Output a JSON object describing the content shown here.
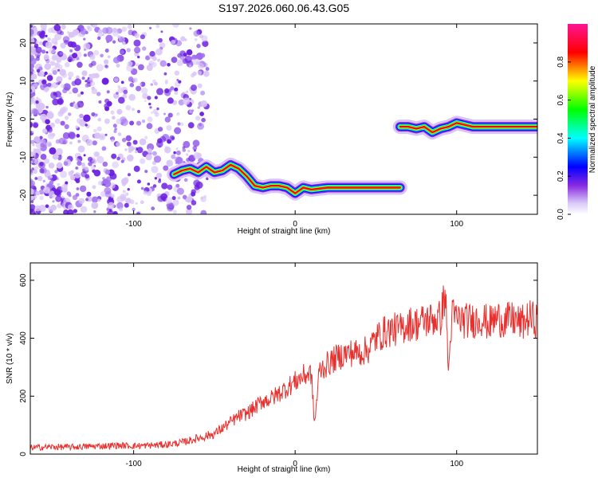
{
  "title": "S197.2026.060.06.43.G05",
  "chart_data": [
    {
      "type": "heatmap",
      "name": "spectrogram",
      "xlabel": "Height of straight line (km)",
      "ylabel": "Frequency (Hz)",
      "xlim": [
        -164,
        150
      ],
      "ylim": [
        -25,
        25
      ],
      "xticks": [
        -100,
        0,
        100
      ],
      "xtick_labels": [
        "-100",
        "0",
        "100"
      ],
      "yticks": [
        -20,
        -10,
        0,
        10,
        20
      ],
      "ytick_labels": [
        "-20",
        "-10",
        "0",
        "10",
        "20"
      ],
      "colorbar": {
        "label": "Normalized spectral amplitude",
        "range": [
          0,
          1
        ],
        "ticks": [
          0.0,
          0.2,
          0.4,
          0.6,
          0.8
        ],
        "tick_labels": [
          "0.0",
          "0.2",
          "0.4",
          "0.6",
          "0.8"
        ],
        "colors": [
          "#ffffff",
          "#8a2be2",
          "#0000ff",
          "#00ffff",
          "#00ff00",
          "#ffff00",
          "#ff0000",
          "#ff1493"
        ]
      },
      "ridge": {
        "x": [
          -75,
          -70,
          -65,
          -60,
          -55,
          -50,
          -45,
          -40,
          -35,
          -30,
          -25,
          -20,
          -15,
          -10,
          -5,
          0,
          5,
          10,
          20,
          30,
          40,
          50,
          60,
          65
        ],
        "freq": [
          -14.5,
          -13.5,
          -13.0,
          -14.0,
          -12.5,
          -14.0,
          -13.5,
          -12.0,
          -13.0,
          -15.0,
          -17.5,
          -18.0,
          -17.5,
          -17.5,
          -18.0,
          -19.5,
          -18.0,
          -18.5,
          -18.0,
          -18.0,
          -18.0,
          -18.0,
          -18.0,
          -18.0
        ]
      },
      "ridge2": {
        "x": [
          65,
          70,
          75,
          80,
          85,
          90,
          95,
          100,
          110,
          120,
          130,
          140,
          150
        ],
        "freq": [
          -2.0,
          -2.0,
          -2.5,
          -2.0,
          -3.5,
          -2.5,
          -2.0,
          -1.0,
          -2.0,
          -2.0,
          -2.0,
          -2.0,
          -2.0
        ]
      }
    },
    {
      "type": "line",
      "name": "snr",
      "xlabel": "Height of straight line (km)",
      "ylabel": "SNR (10 * v/v)",
      "xlim": [
        -164,
        150
      ],
      "ylim": [
        0,
        660
      ],
      "xticks": [
        -100,
        0,
        100
      ],
      "xtick_labels": [
        "-100",
        "0",
        "100"
      ],
      "yticks": [
        0,
        200,
        400,
        600
      ],
      "ytick_labels": [
        "0",
        "200",
        "400",
        "600"
      ],
      "color": "#e8312f",
      "series": [
        {
          "name": "SNR",
          "x": [
            -164,
            -150,
            -140,
            -130,
            -120,
            -110,
            -100,
            -90,
            -80,
            -70,
            -60,
            -50,
            -45,
            -40,
            -35,
            -30,
            -25,
            -20,
            -15,
            -10,
            -5,
            0,
            5,
            10,
            12,
            15,
            20,
            25,
            30,
            35,
            40,
            45,
            50,
            55,
            60,
            65,
            70,
            75,
            80,
            85,
            90,
            93,
            95,
            97,
            100,
            105,
            110,
            115,
            120,
            125,
            130,
            135,
            140,
            145,
            150
          ],
          "values": [
            22,
            25,
            24,
            26,
            28,
            30,
            28,
            30,
            33,
            40,
            55,
            70,
            90,
            110,
            130,
            140,
            160,
            185,
            190,
            210,
            230,
            250,
            270,
            280,
            100,
            290,
            310,
            330,
            345,
            350,
            350,
            360,
            400,
            420,
            430,
            430,
            450,
            450,
            460,
            465,
            470,
            560,
            280,
            480,
            470,
            460,
            460,
            470,
            450,
            470,
            460,
            465,
            450,
            470,
            460
          ]
        }
      ]
    }
  ]
}
